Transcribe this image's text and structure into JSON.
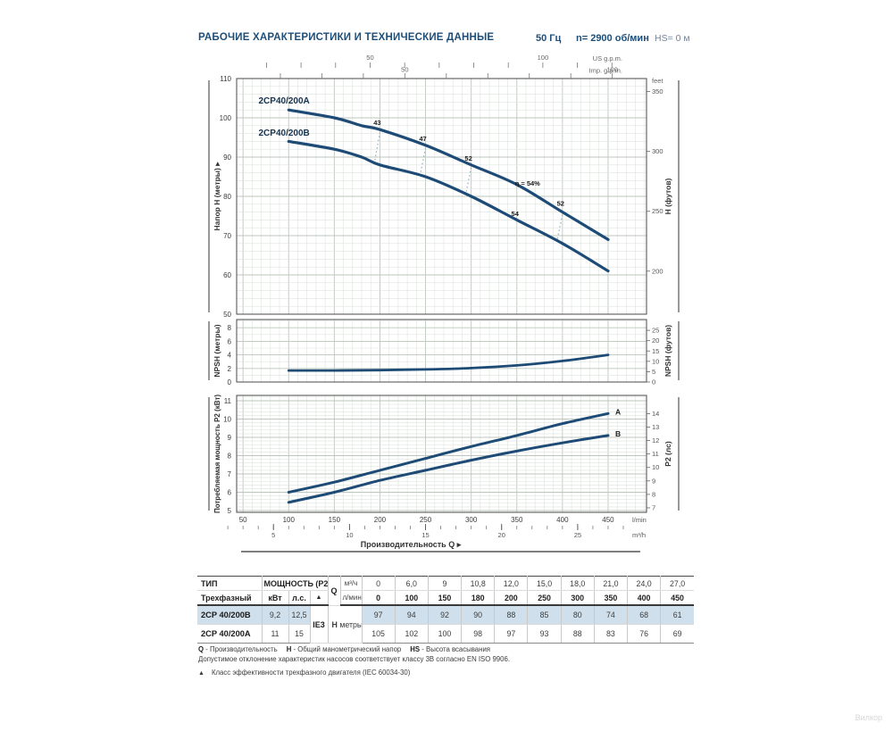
{
  "header": {
    "title": "РАБОЧИЕ ХАРАКТЕРИСТИКИ И ТЕХНИЧЕСКИЕ ДАННЫЕ",
    "frequency": "50 Гц",
    "speed": "n= 2900 об/мин",
    "suction": "HS= 0 м"
  },
  "colors": {
    "navy_text": "#1e4e78",
    "curve": "#1d4b76",
    "grid_minor": "#dee4de",
    "grid_major": "#bdc7bd",
    "box_border": "#4a4a4a",
    "iso_dash": "#8fb0bf",
    "table_highlight": "#cfdfeb"
  },
  "chart_data": [
    {
      "id": "head",
      "type": "line",
      "ylabel_left": "Напор H (метры) ▸",
      "ylabel_right": "H (футов)",
      "right_unit_label": "feet",
      "ylim": [
        50,
        110
      ],
      "y_ticks_left": [
        50,
        60,
        70,
        80,
        90,
        100,
        110
      ],
      "y_ticks_right_feet": [
        200,
        250,
        300,
        350
      ],
      "top_axes": {
        "us_label": "US g.p.m.",
        "imp_label": "Imp. g.p.m.",
        "us_tick_labels": [
          50,
          100
        ],
        "imp_tick_labels": [
          50,
          100
        ]
      },
      "series": [
        {
          "name": "2CP40/200A",
          "label_q": 95,
          "label_h": 103.6,
          "x": [
            100,
            150,
            180,
            200,
            250,
            300,
            350,
            400,
            450
          ],
          "y": [
            102,
            100,
            98,
            97,
            93,
            88,
            83,
            76,
            69
          ]
        },
        {
          "name": "2CP40/200B",
          "label_q": 95,
          "label_h": 95.4,
          "x": [
            100,
            150,
            180,
            200,
            250,
            300,
            350,
            400,
            450
          ],
          "y": [
            94,
            92,
            90,
            88,
            85,
            80,
            74,
            68,
            61
          ]
        }
      ],
      "efficiency_labels": [
        {
          "text": "43",
          "q": 197,
          "h": 98.6,
          "anchor": "middle"
        },
        {
          "text": "47",
          "q": 247,
          "h": 94.6,
          "anchor": "middle"
        },
        {
          "text": "52",
          "q": 297,
          "h": 89.6,
          "anchor": "middle"
        },
        {
          "text": "η = 54%",
          "q": 348,
          "h": 83.2,
          "anchor": "start"
        },
        {
          "text": "54",
          "q": 348,
          "h": 75.4,
          "anchor": "middle"
        },
        {
          "text": "52",
          "q": 398,
          "h": 78.1,
          "anchor": "middle"
        }
      ],
      "iso_lines_q": [
        200,
        250,
        300,
        400
      ]
    },
    {
      "id": "npsh",
      "type": "line",
      "ylabel_left": "NPSH (метры)",
      "ylabel_right": "NPSH (футов)",
      "ylim": [
        0,
        9.2
      ],
      "y_ticks_left": [
        0,
        2,
        4,
        6,
        8
      ],
      "y_ticks_right_feet": [
        0,
        5,
        10,
        15,
        20,
        25
      ],
      "series": [
        {
          "name": "NPSH",
          "x": [
            100,
            150,
            200,
            250,
            300,
            350,
            400,
            450
          ],
          "y": [
            1.7,
            1.7,
            1.75,
            1.85,
            2.05,
            2.45,
            3.1,
            4.0
          ]
        }
      ]
    },
    {
      "id": "p2",
      "type": "line",
      "ylabel_left": "Потребляемая мощность P2 (кВт)",
      "ylabel_right": "P2 (лс)",
      "ylim": [
        4.9,
        11.4
      ],
      "y_ticks_left": [
        5,
        6,
        7,
        8,
        9,
        10,
        11
      ],
      "y_ticks_right_hp": [
        7,
        8,
        9,
        10,
        11,
        12,
        13,
        14
      ],
      "x_tick_labels": [
        50,
        100,
        150,
        200,
        250,
        300,
        350,
        400,
        450
      ],
      "x_unit": "l/min",
      "m3h_axis": {
        "tick_labels": [
          5,
          10,
          15,
          20,
          25
        ],
        "unit": "m³/h"
      },
      "xlabel": "Производительность Q ▸",
      "series": [
        {
          "name": "A",
          "x": [
            100,
            150,
            200,
            250,
            300,
            350,
            400,
            450
          ],
          "y": [
            6.0,
            6.55,
            7.2,
            7.85,
            8.5,
            9.1,
            9.75,
            10.3
          ]
        },
        {
          "name": "B",
          "x": [
            100,
            150,
            200,
            250,
            300,
            350,
            400,
            450
          ],
          "y": [
            5.45,
            6.0,
            6.65,
            7.2,
            7.75,
            8.25,
            8.7,
            9.1
          ]
        }
      ]
    }
  ],
  "table": {
    "type_header": "ТИП",
    "type_sub": "Трехфазный",
    "power_header": "МОЩНОСТЬ (P2)",
    "power_units": [
      "кВт",
      "л.с."
    ],
    "triangle": "▲",
    "ie_class": "IE3",
    "q_label": "Q",
    "q_units": [
      "м³/ч",
      "л/мин"
    ],
    "h_label": "H",
    "h_unit": "метры",
    "q_m3h": [
      "0",
      "6,0",
      "9",
      "10,8",
      "12,0",
      "15,0",
      "18,0",
      "21,0",
      "24,0",
      "27,0"
    ],
    "q_lmin": [
      "0",
      "100",
      "150",
      "180",
      "200",
      "250",
      "300",
      "350",
      "400",
      "450"
    ],
    "rows": [
      {
        "name": "2CP 40/200B",
        "kw": "9,2",
        "hp": "12,5",
        "highlight": true,
        "h": [
          "97",
          "94",
          "92",
          "90",
          "88",
          "85",
          "80",
          "74",
          "68",
          "61"
        ]
      },
      {
        "name": "2CP 40/200A",
        "kw": "11",
        "hp": "15",
        "highlight": false,
        "h": [
          "105",
          "102",
          "100",
          "98",
          "97",
          "93",
          "88",
          "83",
          "76",
          "69"
        ]
      }
    ]
  },
  "notes": {
    "legend": [
      {
        "k": "Q",
        "v": "- Производительность"
      },
      {
        "k": "H",
        "v": "- Общий манометрический напор"
      },
      {
        "k": "HS",
        "v": "- Высота всасывания"
      }
    ],
    "tolerance": "Допустимое отклонение характеристик насосов соответствует классу 3B согласно EN ISO 9906.",
    "triangle_symbol": "▲",
    "triangle_note": "Класс эффективности трехфазного двигателя (IEC 60034-30)"
  },
  "watermark": "Вилкор"
}
